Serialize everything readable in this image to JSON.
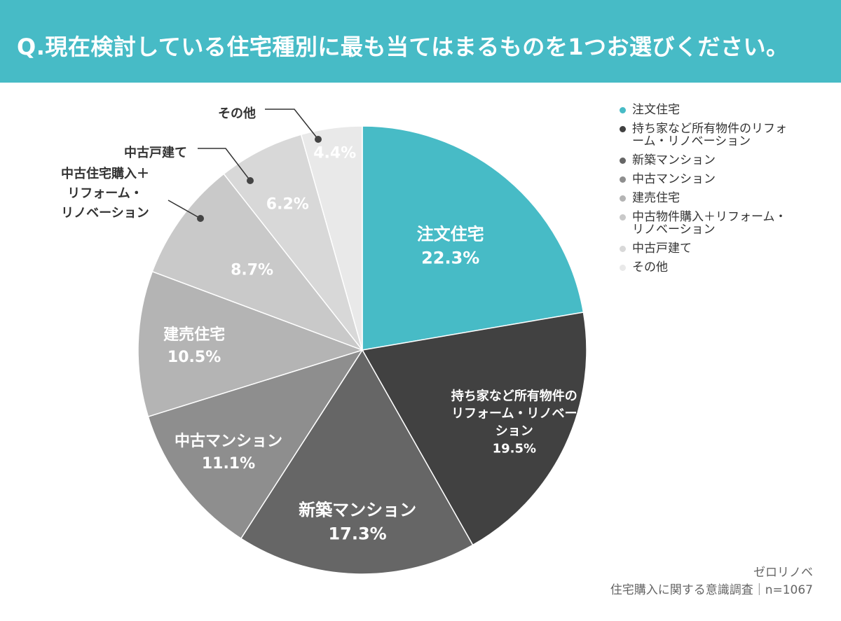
{
  "header": {
    "title": "Q.現在検討している住宅種別に最も当てはまるものを1つお選びください。"
  },
  "chart_data": {
    "type": "pie",
    "title": "Q.現在検討している住宅種別に最も当てはまるものを1つお選びください。",
    "slices": [
      {
        "label": "注文住宅",
        "display": [
          "注文住宅"
        ],
        "value": 22.3,
        "value_label": "22.3%",
        "color": "#47bbc6",
        "text_color": "#ffffff"
      },
      {
        "label": "持ち家など所有物件のリフォーム・リノベーション",
        "display": [
          "持ち家など所有物件の",
          "リフォーム・リノベー",
          "ション"
        ],
        "value": 19.5,
        "value_label": "19.5%",
        "color": "#414141",
        "text_color": "#ffffff"
      },
      {
        "label": "新築マンション",
        "display": [
          "新築マンション"
        ],
        "value": 17.3,
        "value_label": "17.3%",
        "color": "#666666",
        "text_color": "#ffffff"
      },
      {
        "label": "中古マンション",
        "display": [
          "中古マンション"
        ],
        "value": 11.1,
        "value_label": "11.1%",
        "color": "#8e8e8e",
        "text_color": "#ffffff"
      },
      {
        "label": "建売住宅",
        "display": [
          "建売住宅"
        ],
        "value": 10.5,
        "value_label": "10.5%",
        "color": "#b4b4b4",
        "text_color": "#ffffff"
      },
      {
        "label": "中古物件購入＋リフォーム・リノベーション",
        "value": 8.7,
        "value_label": "8.7%",
        "color": "#c9c9c9",
        "text_color": "#ffffff",
        "callout": [
          "中古住宅購入＋",
          "リフォーム・",
          "リノベーション"
        ]
      },
      {
        "label": "中古戸建て",
        "value": 6.2,
        "value_label": "6.2%",
        "color": "#d8d8d8",
        "text_color": "#ffffff",
        "callout": [
          "中古戸建て"
        ]
      },
      {
        "label": "その他",
        "value": 4.4,
        "value_label": "4.4%",
        "color": "#e9e9e9",
        "text_color": "#ffffff",
        "callout": [
          "その他"
        ]
      }
    ],
    "legend": [
      {
        "text": "注文住宅",
        "color": "#47bbc6"
      },
      {
        "text": "持ち家など所有物件のリフォーム・リノベーション",
        "color": "#414141"
      },
      {
        "text": "新築マンション",
        "color": "#666666"
      },
      {
        "text": "中古マンション",
        "color": "#8e8e8e"
      },
      {
        "text": "建売住宅",
        "color": "#b4b4b4"
      },
      {
        "text": "中古物件購入＋リフォーム・リノベーション",
        "color": "#c9c9c9"
      },
      {
        "text": "中古戸建て",
        "color": "#d8d8d8"
      },
      {
        "text": "その他",
        "color": "#e9e9e9"
      }
    ],
    "legend_position": "right"
  },
  "source": {
    "brand": "ゼロリノベ",
    "survey": "住宅購入に関する意識調査｜n=1067"
  }
}
